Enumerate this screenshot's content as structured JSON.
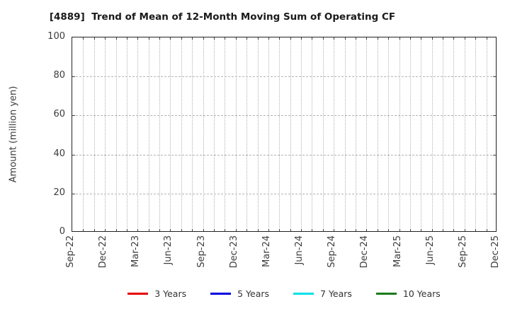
{
  "chart_data": {
    "type": "line",
    "title": "[4889]  Trend of Mean of 12-Month Moving Sum of Operating CF",
    "ylabel": "Amount (million yen)",
    "xlabel": "",
    "ylim": [
      0,
      100
    ],
    "yticks": [
      0,
      20,
      40,
      60,
      80,
      100
    ],
    "x_tick_labels": [
      "Sep-22",
      "Dec-22",
      "Mar-23",
      "Jun-23",
      "Sep-23",
      "Dec-23",
      "Mar-24",
      "Jun-24",
      "Sep-24",
      "Dec-24",
      "Mar-25",
      "Jun-25",
      "Sep-25",
      "Dec-25"
    ],
    "x_tick_interval_months": 3,
    "grid": {
      "vertical": "dotted, monthly",
      "horizontal": "dashed, at yticks"
    },
    "legend_position": "bottom-center",
    "series": [
      {
        "name": "3 Years",
        "color": "#e60000",
        "values": []
      },
      {
        "name": "5 Years",
        "color": "#0000dd",
        "values": []
      },
      {
        "name": "7 Years",
        "color": "#00e0e8",
        "values": []
      },
      {
        "name": "10 Years",
        "color": "#1a7a1a",
        "values": []
      }
    ],
    "note": "plot area is empty - no data points are drawn for any series"
  }
}
